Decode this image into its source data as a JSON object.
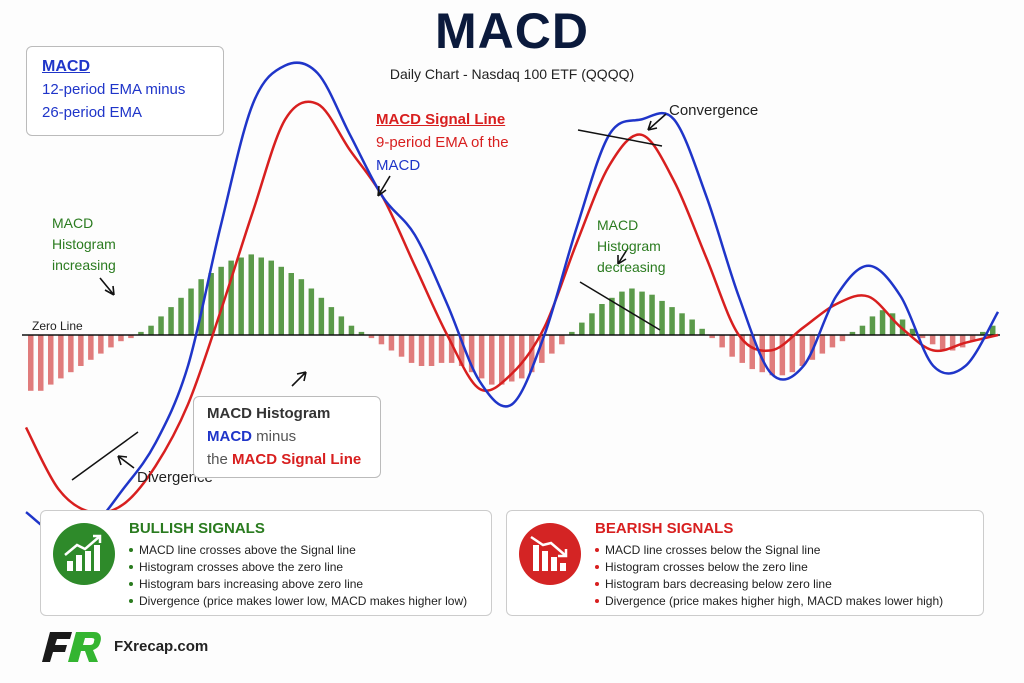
{
  "header": {
    "title": "MACD",
    "subtitle": "Daily Chart - Nasdaq 100 ETF (QQQQ)"
  },
  "annotations": {
    "macd_box": {
      "title": "MACD",
      "line1": "12-period EMA minus",
      "line2": "26-period EMA"
    },
    "signal_line": {
      "title": "MACD Signal Line",
      "line1": "9-period EMA of the",
      "line2": "MACD"
    },
    "hist_increasing": {
      "line1": "MACD",
      "line2": "Histogram",
      "line3": "increasing"
    },
    "hist_decreasing": {
      "line1": "MACD",
      "line2": "Histogram",
      "line3": "decreasing"
    },
    "convergence": "Convergence",
    "divergence": "Divergence",
    "zero_line": "Zero Line",
    "histogram_box": {
      "title": "MACD Histogram",
      "macd": "MACD",
      "minus": "minus",
      "the": "the",
      "signal": "MACD Signal Line"
    }
  },
  "bullish": {
    "title": "BULLISH SIGNALS",
    "items": [
      "MACD line crosses above the Signal line",
      "Histogram crosses above the zero line",
      "Histogram bars increasing above zero line",
      "Divergence (price makes lower low, MACD makes higher low)"
    ]
  },
  "bearish": {
    "title": "BEARISH SIGNALS",
    "items": [
      "MACD line crosses below the Signal line",
      "Histogram crosses below the zero line",
      "Histogram bars decreasing below zero line",
      "Divergence (price makes higher high, MACD makes lower high)"
    ]
  },
  "footer": {
    "brand": "FXrecap.com",
    "logo_text": "FR"
  },
  "colors": {
    "macd": "#1f35c9",
    "signal": "#d81f1f",
    "hist_pos": "#5b9a4a",
    "hist_neg": "#e07c7c",
    "bull": "#2a7b1f",
    "bear": "#d81f1f"
  },
  "chart_data": {
    "type": "line",
    "macd": [
      [
        0,
        -2.3
      ],
      [
        5,
        -2.6
      ],
      [
        10,
        -2.5
      ],
      [
        15,
        -2.0
      ],
      [
        20,
        -1.4
      ],
      [
        25,
        -0.4
      ],
      [
        30,
        1.4
      ],
      [
        35,
        3.0
      ],
      [
        40,
        3.5
      ],
      [
        45,
        3.4
      ],
      [
        50,
        2.6
      ],
      [
        55,
        1.8
      ],
      [
        60,
        1.3
      ],
      [
        65,
        0.4
      ],
      [
        70,
        -0.6
      ],
      [
        75,
        -0.9
      ],
      [
        80,
        0.0
      ],
      [
        85,
        1.4
      ],
      [
        90,
        2.6
      ],
      [
        95,
        2.8
      ],
      [
        100,
        2.8
      ],
      [
        105,
        1.8
      ],
      [
        110,
        0.5
      ],
      [
        115,
        -0.5
      ],
      [
        120,
        -0.4
      ],
      [
        125,
        0.5
      ],
      [
        130,
        0.9
      ],
      [
        135,
        0.5
      ],
      [
        140,
        -0.4
      ],
      [
        145,
        -0.4
      ],
      [
        150,
        0.3
      ]
    ],
    "signal": [
      [
        0,
        -1.2
      ],
      [
        5,
        -2.0
      ],
      [
        10,
        -2.3
      ],
      [
        15,
        -2.2
      ],
      [
        20,
        -1.7
      ],
      [
        25,
        -0.9
      ],
      [
        30,
        0.3
      ],
      [
        35,
        1.6
      ],
      [
        40,
        2.8
      ],
      [
        45,
        3.0
      ],
      [
        50,
        2.4
      ],
      [
        55,
        1.8
      ],
      [
        60,
        0.9
      ],
      [
        65,
        0.0
      ],
      [
        70,
        -0.7
      ],
      [
        75,
        -0.5
      ],
      [
        80,
        0.1
      ],
      [
        85,
        1.2
      ],
      [
        90,
        2.2
      ],
      [
        95,
        2.6
      ],
      [
        100,
        2.0
      ],
      [
        105,
        1.0
      ],
      [
        110,
        0.0
      ],
      [
        115,
        -0.2
      ],
      [
        120,
        0.1
      ],
      [
        125,
        0.4
      ],
      [
        130,
        0.5
      ],
      [
        135,
        0.1
      ],
      [
        140,
        -0.2
      ],
      [
        145,
        -0.1
      ],
      [
        150,
        0.0
      ]
    ],
    "histogram": [
      -0.9,
      -0.9,
      -0.8,
      -0.7,
      -0.6,
      -0.5,
      -0.4,
      -0.3,
      -0.2,
      -0.1,
      -0.05,
      0.05,
      0.15,
      0.3,
      0.45,
      0.6,
      0.75,
      0.9,
      1.0,
      1.1,
      1.2,
      1.25,
      1.3,
      1.25,
      1.2,
      1.1,
      1.0,
      0.9,
      0.75,
      0.6,
      0.45,
      0.3,
      0.15,
      0.05,
      -0.05,
      -0.15,
      -0.25,
      -0.35,
      -0.45,
      -0.5,
      -0.5,
      -0.45,
      -0.45,
      -0.5,
      -0.6,
      -0.7,
      -0.8,
      -0.8,
      -0.75,
      -0.7,
      -0.6,
      -0.45,
      -0.3,
      -0.15,
      0.05,
      0.2,
      0.35,
      0.5,
      0.6,
      0.7,
      0.75,
      0.7,
      0.65,
      0.55,
      0.45,
      0.35,
      0.25,
      0.1,
      -0.05,
      -0.2,
      -0.35,
      -0.45,
      -0.55,
      -0.6,
      -0.65,
      -0.65,
      -0.6,
      -0.5,
      -0.4,
      -0.3,
      -0.2,
      -0.1,
      0.05,
      0.15,
      0.3,
      0.4,
      0.35,
      0.25,
      0.1,
      -0.05,
      -0.15,
      -0.25,
      -0.25,
      -0.2,
      -0.1,
      0.05,
      0.15
    ],
    "ylim": [
      -3,
      4
    ]
  }
}
